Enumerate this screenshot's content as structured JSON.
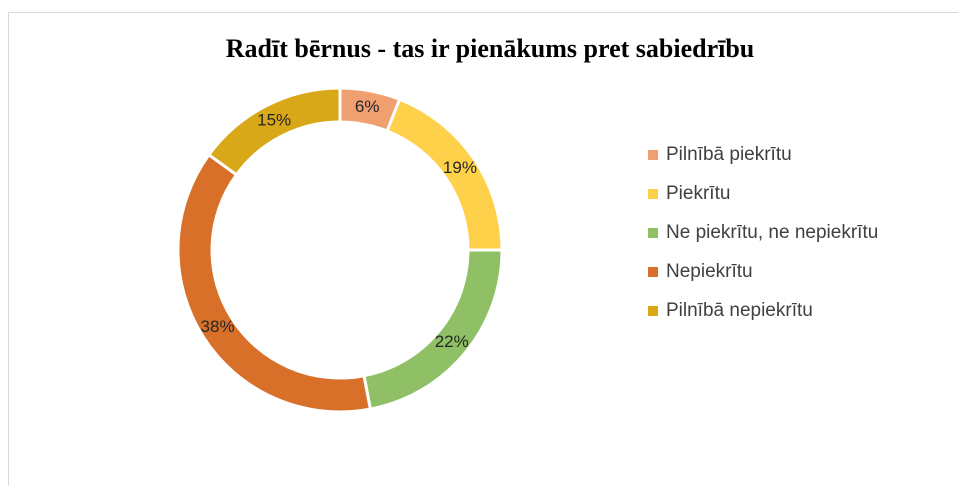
{
  "chart_data": {
    "type": "donut",
    "title": "Radīt bērnus - tas ir pienākums pret sabiedrību",
    "categories": [
      "Pilnībā piekrītu",
      "Piekrītu",
      "Ne piekrītu, ne nepiekrītu",
      "Nepiekrītu",
      "Pilnībā nepiekrītu"
    ],
    "values": [
      6,
      19,
      22,
      38,
      15
    ],
    "value_labels": [
      "6%",
      "19%",
      "22%",
      "38%",
      "15%"
    ],
    "colors": [
      "#f0a070",
      "#ffd04a",
      "#8fc066",
      "#d8702a",
      "#d8a818"
    ],
    "legend": "right"
  }
}
